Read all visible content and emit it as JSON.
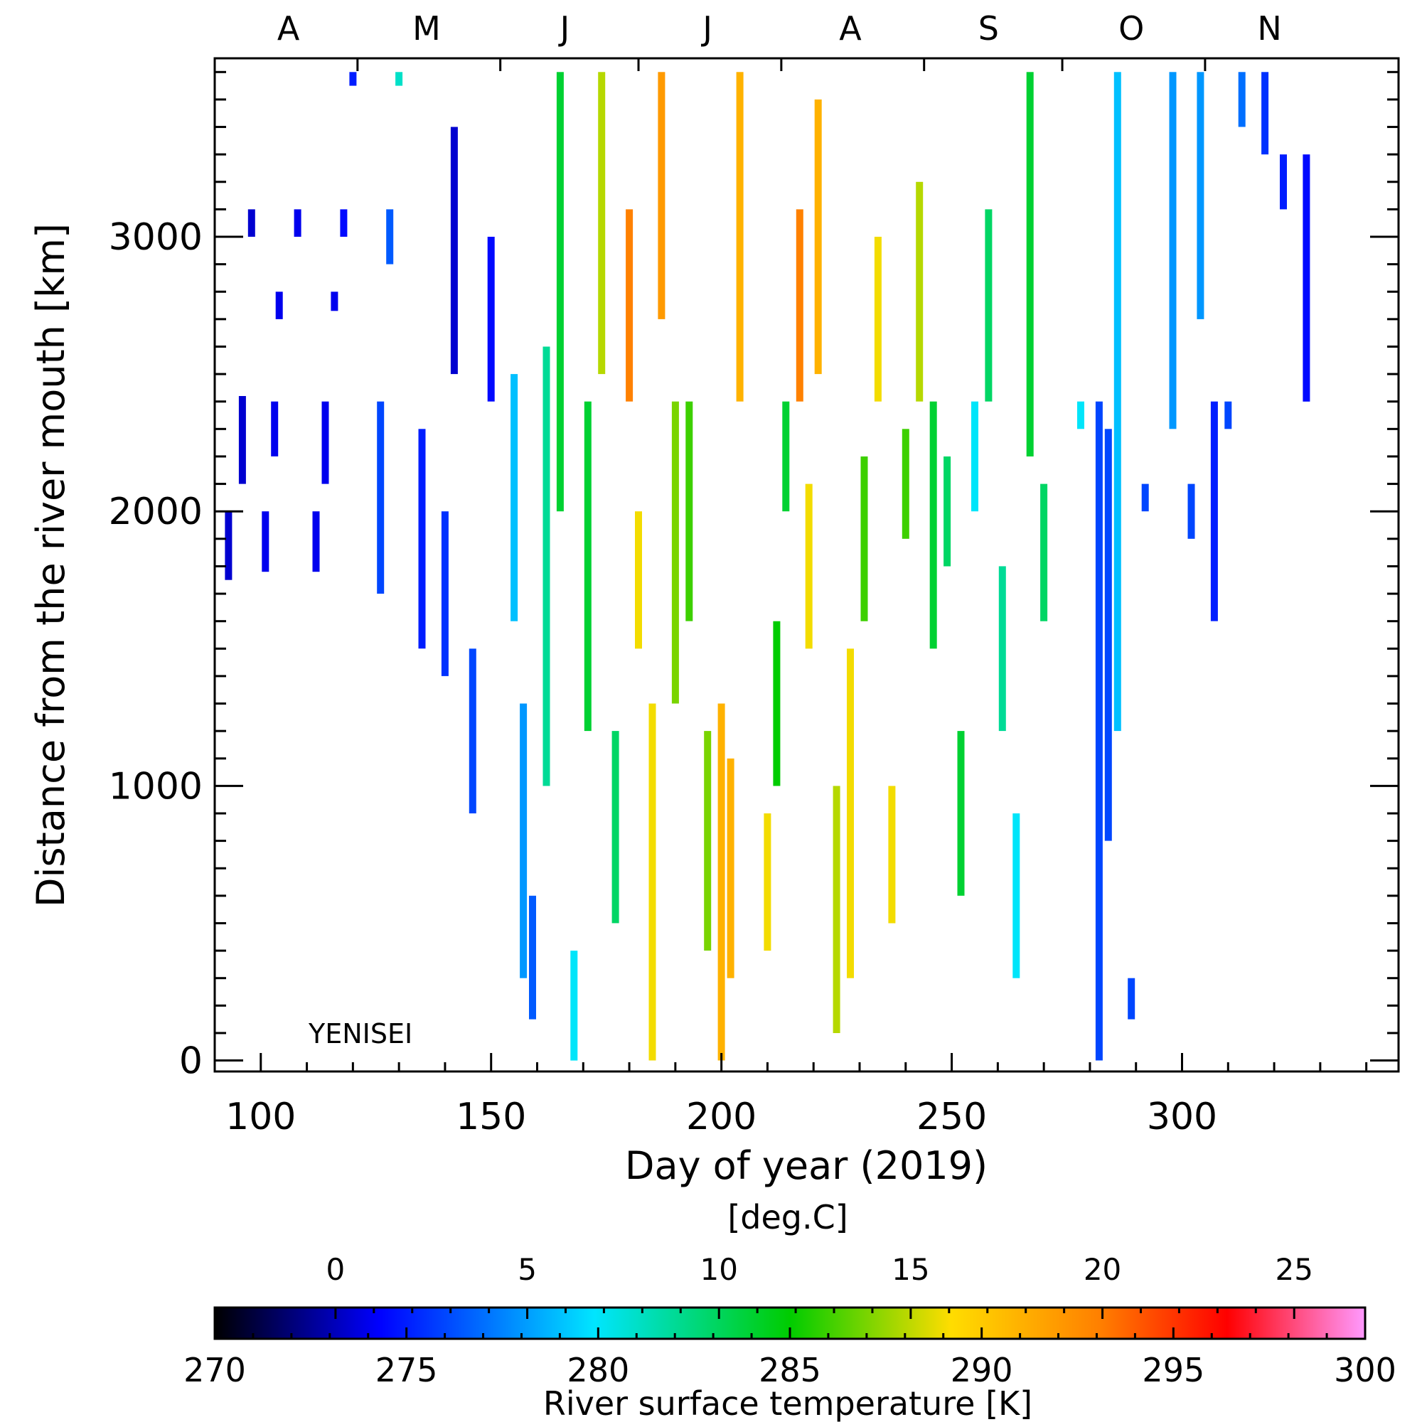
{
  "chart_data": {
    "type": "scatter",
    "title": "",
    "annotation": "YENISEI",
    "xlabel": "Day of year (2019)",
    "ylabel": "Distance from the river mouth [km]",
    "xlim": [
      90,
      347
    ],
    "ylim": [
      -40,
      3650
    ],
    "x_ticks": [
      "100",
      "150",
      "200",
      "250",
      "300"
    ],
    "y_ticks": [
      "0",
      "1000",
      "2000",
      "3000"
    ],
    "month_labels": [
      {
        "label": "A",
        "day": 106
      },
      {
        "label": "M",
        "day": 136
      },
      {
        "label": "J",
        "day": 166
      },
      {
        "label": "J",
        "day": 197
      },
      {
        "label": "A",
        "day": 228
      },
      {
        "label": "S",
        "day": 258
      },
      {
        "label": "O",
        "day": 289
      },
      {
        "label": "N",
        "day": 319
      }
    ],
    "month_boundaries": [
      121,
      152,
      182,
      213,
      244,
      274,
      305
    ],
    "colorbar": {
      "label": "River surface temperature [K]",
      "unit_top": "[deg.C]",
      "range_K": [
        270,
        300
      ],
      "ticks_K": [
        "270",
        "275",
        "280",
        "285",
        "290",
        "295",
        "300"
      ],
      "ticks_C": [
        "0",
        "5",
        "10",
        "15",
        "20",
        "25"
      ],
      "colors": [
        "#000000",
        "#0000ff",
        "#00e5ff",
        "#00cc00",
        "#ffdd00",
        "#ff7f00",
        "#ff0000",
        "#ff99ff"
      ]
    },
    "temperature_field_K": {
      "description_note": "observed pixel swaths: [day, min_km, max_km, temperature_K]",
      "swaths": [
        [
          93,
          1750,
          2000,
          273.5
        ],
        [
          96,
          2100,
          2420,
          273.5
        ],
        [
          98,
          3000,
          3100,
          273.5
        ],
        [
          101,
          1780,
          2000,
          274
        ],
        [
          103,
          2200,
          2400,
          274
        ],
        [
          104,
          2700,
          2800,
          274
        ],
        [
          108,
          3000,
          3100,
          274
        ],
        [
          112,
          1780,
          2000,
          274
        ],
        [
          114,
          2100,
          2400,
          274
        ],
        [
          116,
          2730,
          2800,
          274
        ],
        [
          118,
          3000,
          3100,
          274.5
        ],
        [
          120,
          3550,
          3600,
          275
        ],
        [
          126,
          1700,
          2400,
          276
        ],
        [
          128,
          2900,
          3100,
          276.5
        ],
        [
          130,
          3550,
          3600,
          281
        ],
        [
          135,
          1500,
          2300,
          275
        ],
        [
          140,
          1400,
          2000,
          275.5
        ],
        [
          142,
          2500,
          3400,
          273.5
        ],
        [
          146,
          900,
          1500,
          276
        ],
        [
          150,
          2400,
          3000,
          274.5
        ],
        [
          155,
          1600,
          2500,
          279
        ],
        [
          157,
          300,
          1300,
          278
        ],
        [
          159,
          150,
          600,
          276.5
        ],
        [
          162,
          1000,
          2600,
          282
        ],
        [
          165,
          2000,
          3600,
          284
        ],
        [
          168,
          0,
          400,
          280
        ],
        [
          171,
          1200,
          2400,
          284
        ],
        [
          174,
          2500,
          3600,
          288
        ],
        [
          177,
          500,
          1200,
          283
        ],
        [
          180,
          2400,
          3100,
          293
        ],
        [
          182,
          1500,
          2000,
          289
        ],
        [
          185,
          0,
          1300,
          289
        ],
        [
          187,
          2700,
          3600,
          292
        ],
        [
          190,
          1300,
          2400,
          287
        ],
        [
          193,
          1600,
          2400,
          286
        ],
        [
          197,
          400,
          1200,
          287
        ],
        [
          200,
          0,
          1300,
          291
        ],
        [
          202,
          300,
          1100,
          291
        ],
        [
          204,
          2400,
          3600,
          291
        ],
        [
          210,
          400,
          900,
          289
        ],
        [
          212,
          1000,
          1600,
          285
        ],
        [
          214,
          2000,
          2400,
          284
        ],
        [
          217,
          2400,
          3100,
          293
        ],
        [
          219,
          1500,
          2100,
          289
        ],
        [
          221,
          2500,
          3500,
          291
        ],
        [
          225,
          100,
          1000,
          288
        ],
        [
          228,
          300,
          1500,
          289
        ],
        [
          231,
          1600,
          2200,
          286
        ],
        [
          234,
          2400,
          3000,
          289
        ],
        [
          237,
          500,
          1000,
          289
        ],
        [
          240,
          1900,
          2300,
          286
        ],
        [
          243,
          2400,
          3200,
          288
        ],
        [
          246,
          1500,
          2400,
          284
        ],
        [
          249,
          1800,
          2200,
          283
        ],
        [
          252,
          600,
          1200,
          284
        ],
        [
          255,
          2000,
          2400,
          280
        ],
        [
          258,
          2400,
          3100,
          283
        ],
        [
          261,
          1200,
          1800,
          282
        ],
        [
          264,
          300,
          900,
          280
        ],
        [
          267,
          2200,
          3600,
          284
        ],
        [
          270,
          1600,
          2100,
          283
        ],
        [
          278,
          2300,
          2400,
          280
        ],
        [
          282,
          0,
          2400,
          276
        ],
        [
          284,
          800,
          2300,
          276
        ],
        [
          286,
          1200,
          3600,
          279
        ],
        [
          289,
          150,
          300,
          276
        ],
        [
          292,
          2000,
          2100,
          276
        ],
        [
          298,
          2300,
          3600,
          278
        ],
        [
          302,
          1900,
          2100,
          276
        ],
        [
          304,
          2700,
          3600,
          278
        ],
        [
          307,
          1600,
          2400,
          275
        ],
        [
          310,
          2300,
          2400,
          276
        ],
        [
          313,
          3400,
          3600,
          277
        ],
        [
          318,
          3300,
          3600,
          275.5
        ],
        [
          322,
          3100,
          3300,
          275
        ],
        [
          327,
          2400,
          3300,
          274.5
        ]
      ]
    }
  }
}
